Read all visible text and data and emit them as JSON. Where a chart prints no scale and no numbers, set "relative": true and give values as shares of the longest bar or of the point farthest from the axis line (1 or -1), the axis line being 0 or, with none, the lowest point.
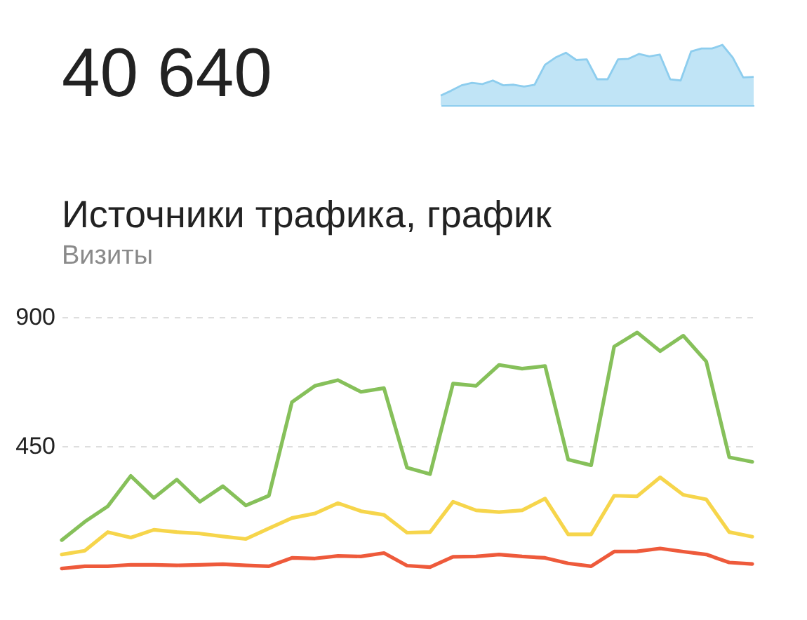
{
  "chart_data": [
    {
      "type": "other",
      "title": "40 640"
    },
    {
      "type": "area",
      "relative": true,
      "tick_labels": false,
      "categories": [
        null,
        null,
        null,
        null,
        null,
        null,
        null,
        null,
        null,
        null,
        null,
        null,
        null,
        null,
        null,
        null,
        null,
        null,
        null,
        null,
        null,
        null,
        null,
        null,
        null,
        null,
        null,
        null,
        null,
        null,
        null
      ],
      "color": "#8dcdee",
      "values": [
        0.16,
        0.24,
        0.33,
        0.37,
        0.35,
        0.41,
        0.33,
        0.34,
        0.31,
        0.34,
        0.67,
        0.79,
        0.87,
        0.75,
        0.76,
        0.43,
        0.43,
        0.76,
        0.77,
        0.85,
        0.81,
        0.84,
        0.43,
        0.41,
        0.89,
        0.94,
        0.94,
        1,
        0.79,
        0.46,
        0.47
      ]
    },
    {
      "type": "line",
      "title": "Источники трафика, график",
      "subtitle": "Визиты",
      "grid": "y",
      "tick_labels": "y",
      "categories": [
        null,
        null,
        null,
        null,
        null,
        null,
        null,
        null,
        null,
        null,
        null,
        null,
        null,
        null,
        null,
        null,
        null,
        null,
        null,
        null,
        null,
        null,
        null,
        null,
        null,
        null,
        null,
        null,
        null,
        null,
        null
      ],
      "ylim": [
        0,
        900
      ],
      "yticks": [
        450,
        900
      ],
      "series": [
        {
          "color": "#86c05a",
          "values": [
            122,
            186,
            240,
            346,
            269,
            333,
            256,
            310,
            243,
            277,
            603,
            660,
            680,
            639,
            652,
            375,
            352,
            668,
            660,
            733,
            720,
            729,
            403,
            383,
            797,
            846,
            781,
            835,
            745,
            411,
            395
          ]
        },
        {
          "color": "#f6d54b",
          "values": [
            72,
            85,
            150,
            131,
            158,
            150,
            145,
            135,
            126,
            163,
            199,
            215,
            251,
            223,
            210,
            148,
            150,
            256,
            226,
            220,
            226,
            267,
            142,
            142,
            277,
            275,
            341,
            280,
            264,
            150,
            134
          ]
        },
        {
          "color": "#ee5a3b",
          "values": [
            23,
            31,
            31,
            36,
            36,
            34,
            36,
            38,
            34,
            31,
            60,
            58,
            67,
            65,
            77,
            33,
            28,
            64,
            65,
            72,
            65,
            60,
            41,
            31,
            82,
            83,
            93,
            82,
            72,
            44,
            39
          ]
        }
      ]
    }
  ]
}
